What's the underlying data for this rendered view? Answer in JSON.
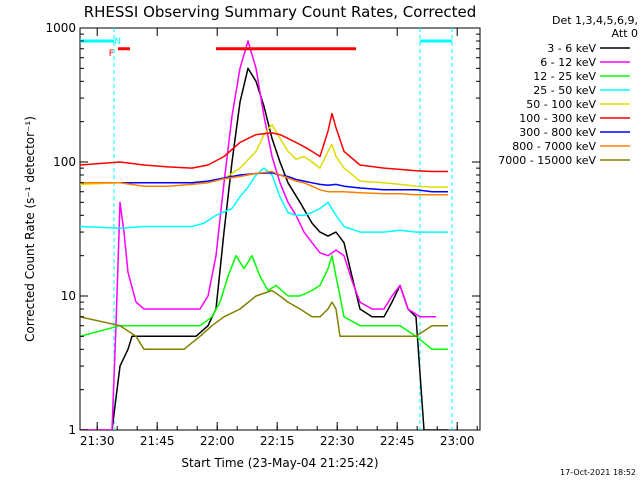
{
  "chart_data": {
    "type": "line",
    "title": "RHESSI Observing Summary Count Rates, Corrected",
    "xlabel": "Start Time (23-May-04 21:25:42)",
    "ylabel": "Corrected Count Rate (s⁻¹ detector⁻¹)",
    "y_scale": "log",
    "ylim": [
      1,
      1000
    ],
    "xlim_min_after_2125": [
      0,
      100
    ],
    "x_ticks": [
      {
        "label": "21:30",
        "t": 4.3
      },
      {
        "label": "21:45",
        "t": 19.3
      },
      {
        "label": "22:00",
        "t": 34.3
      },
      {
        "label": "22:15",
        "t": 49.3
      },
      {
        "label": "22:30",
        "t": 64.3
      },
      {
        "label": "22:45",
        "t": 79.3
      },
      {
        "label": "23:00",
        "t": 94.3
      }
    ],
    "y_ticks": [
      {
        "label": "1",
        "v": 1
      },
      {
        "label": "10",
        "v": 10
      },
      {
        "label": "100",
        "v": 100
      },
      {
        "label": "1000",
        "v": 1000
      }
    ],
    "legend_header": [
      "Det 1,3,4,5,6,9,",
      "Att 0"
    ],
    "legend_placement": "right",
    "annotations": {
      "night_label": "N",
      "flare_label": "F"
    },
    "x_unit": "minutes after 21:25:42",
    "series": [
      {
        "name": "3 - 6 keV",
        "color": "#000000",
        "points": [
          [
            0,
            1
          ],
          [
            8,
            1
          ],
          [
            10,
            3
          ],
          [
            12,
            4
          ],
          [
            13,
            5
          ],
          [
            17,
            5
          ],
          [
            20,
            5
          ],
          [
            26,
            5
          ],
          [
            29,
            5
          ],
          [
            32,
            6
          ],
          [
            34,
            8
          ],
          [
            36,
            30
          ],
          [
            38,
            100
          ],
          [
            40,
            280
          ],
          [
            42,
            500
          ],
          [
            44,
            400
          ],
          [
            46,
            260
          ],
          [
            48,
            150
          ],
          [
            50,
            100
          ],
          [
            52,
            70
          ],
          [
            55,
            50
          ],
          [
            58,
            35
          ],
          [
            60,
            30
          ],
          [
            62,
            28
          ],
          [
            64,
            30
          ],
          [
            66,
            25
          ],
          [
            68,
            14
          ],
          [
            70,
            8
          ],
          [
            73,
            7
          ],
          [
            76,
            7
          ],
          [
            78,
            9
          ],
          [
            80,
            12
          ],
          [
            82,
            8
          ],
          [
            84,
            7
          ],
          [
            86,
            1
          ],
          [
            92,
            1
          ]
        ]
      },
      {
        "name": "6 - 12 keV",
        "color": "#ff00ff",
        "points": [
          [
            0,
            1
          ],
          [
            8,
            1
          ],
          [
            9,
            6
          ],
          [
            10,
            50
          ],
          [
            11,
            30
          ],
          [
            12,
            15
          ],
          [
            14,
            9
          ],
          [
            16,
            8
          ],
          [
            20,
            8
          ],
          [
            26,
            8
          ],
          [
            30,
            8
          ],
          [
            32,
            10
          ],
          [
            34,
            20
          ],
          [
            36,
            70
          ],
          [
            38,
            220
          ],
          [
            40,
            500
          ],
          [
            42,
            800
          ],
          [
            44,
            500
          ],
          [
            46,
            220
          ],
          [
            48,
            110
          ],
          [
            50,
            70
          ],
          [
            52,
            50
          ],
          [
            54,
            40
          ],
          [
            56,
            30
          ],
          [
            58,
            25
          ],
          [
            60,
            21
          ],
          [
            62,
            20
          ],
          [
            64,
            22
          ],
          [
            66,
            20
          ],
          [
            68,
            13
          ],
          [
            70,
            9
          ],
          [
            73,
            8
          ],
          [
            76,
            8
          ],
          [
            78,
            10
          ],
          [
            80,
            12
          ],
          [
            82,
            8
          ],
          [
            85,
            7
          ],
          [
            89,
            7
          ]
        ]
      },
      {
        "name": "12 - 25 keV",
        "color": "#00ff00",
        "points": [
          [
            0,
            5
          ],
          [
            10,
            6
          ],
          [
            16,
            6
          ],
          [
            22,
            6
          ],
          [
            26,
            6
          ],
          [
            30,
            6
          ],
          [
            33,
            7
          ],
          [
            35,
            9
          ],
          [
            37,
            14
          ],
          [
            39,
            20
          ],
          [
            41,
            16
          ],
          [
            43,
            20
          ],
          [
            45,
            14
          ],
          [
            47,
            11
          ],
          [
            49,
            12
          ],
          [
            52,
            10
          ],
          [
            55,
            10
          ],
          [
            58,
            11
          ],
          [
            60,
            12
          ],
          [
            62,
            16
          ],
          [
            63,
            20
          ],
          [
            64,
            14
          ],
          [
            65,
            10
          ],
          [
            66,
            7
          ],
          [
            70,
            6
          ],
          [
            76,
            6
          ],
          [
            80,
            6
          ],
          [
            84,
            5
          ],
          [
            88,
            4
          ],
          [
            92,
            4
          ]
        ]
      },
      {
        "name": "25 - 50 keV",
        "color": "#00ffff",
        "points": [
          [
            0,
            33
          ],
          [
            10,
            32
          ],
          [
            16,
            33
          ],
          [
            22,
            33
          ],
          [
            28,
            33
          ],
          [
            31,
            35
          ],
          [
            34,
            40
          ],
          [
            38,
            45
          ],
          [
            40,
            55
          ],
          [
            42,
            65
          ],
          [
            44,
            80
          ],
          [
            46,
            90
          ],
          [
            48,
            80
          ],
          [
            50,
            55
          ],
          [
            52,
            42
          ],
          [
            54,
            40
          ],
          [
            56,
            40
          ],
          [
            58,
            42
          ],
          [
            60,
            45
          ],
          [
            62,
            50
          ],
          [
            64,
            40
          ],
          [
            66,
            33
          ],
          [
            70,
            30
          ],
          [
            76,
            30
          ],
          [
            80,
            31
          ],
          [
            84,
            30
          ],
          [
            88,
            30
          ],
          [
            92,
            30
          ]
        ]
      },
      {
        "name": "50 - 100 keV",
        "color": "#dddd00",
        "points": [
          [
            0,
            68
          ],
          [
            10,
            70
          ],
          [
            16,
            70
          ],
          [
            22,
            70
          ],
          [
            28,
            70
          ],
          [
            32,
            72
          ],
          [
            36,
            75
          ],
          [
            40,
            90
          ],
          [
            44,
            120
          ],
          [
            46,
            160
          ],
          [
            48,
            190
          ],
          [
            50,
            150
          ],
          [
            52,
            120
          ],
          [
            54,
            105
          ],
          [
            56,
            110
          ],
          [
            58,
            100
          ],
          [
            60,
            90
          ],
          [
            62,
            120
          ],
          [
            63,
            135
          ],
          [
            64,
            110
          ],
          [
            66,
            90
          ],
          [
            70,
            72
          ],
          [
            76,
            70
          ],
          [
            80,
            68
          ],
          [
            84,
            66
          ],
          [
            88,
            65
          ],
          [
            92,
            65
          ]
        ]
      },
      {
        "name": "100 - 300 keV",
        "color": "#ff0000",
        "points": [
          [
            0,
            95
          ],
          [
            10,
            100
          ],
          [
            16,
            95
          ],
          [
            22,
            92
          ],
          [
            28,
            90
          ],
          [
            32,
            95
          ],
          [
            36,
            110
          ],
          [
            40,
            140
          ],
          [
            44,
            160
          ],
          [
            48,
            165
          ],
          [
            50,
            160
          ],
          [
            52,
            150
          ],
          [
            54,
            140
          ],
          [
            56,
            130
          ],
          [
            58,
            120
          ],
          [
            60,
            110
          ],
          [
            62,
            170
          ],
          [
            63,
            230
          ],
          [
            64,
            180
          ],
          [
            66,
            120
          ],
          [
            70,
            95
          ],
          [
            76,
            90
          ],
          [
            80,
            88
          ],
          [
            84,
            86
          ],
          [
            88,
            85
          ],
          [
            92,
            85
          ]
        ]
      },
      {
        "name": "300 - 800 keV",
        "color": "#0000ff",
        "points": [
          [
            0,
            70
          ],
          [
            10,
            70
          ],
          [
            16,
            70
          ],
          [
            22,
            70
          ],
          [
            28,
            70
          ],
          [
            32,
            72
          ],
          [
            36,
            76
          ],
          [
            40,
            80
          ],
          [
            44,
            82
          ],
          [
            48,
            83
          ],
          [
            50,
            80
          ],
          [
            52,
            78
          ],
          [
            54,
            74
          ],
          [
            56,
            72
          ],
          [
            58,
            70
          ],
          [
            60,
            68
          ],
          [
            62,
            67
          ],
          [
            64,
            68
          ],
          [
            66,
            66
          ],
          [
            70,
            64
          ],
          [
            76,
            62
          ],
          [
            80,
            62
          ],
          [
            84,
            62
          ],
          [
            88,
            60
          ],
          [
            92,
            60
          ]
        ]
      },
      {
        "name": "800 - 7000 keV",
        "color": "#ff8000",
        "points": [
          [
            0,
            70
          ],
          [
            10,
            70
          ],
          [
            16,
            66
          ],
          [
            22,
            66
          ],
          [
            28,
            68
          ],
          [
            32,
            70
          ],
          [
            36,
            75
          ],
          [
            40,
            78
          ],
          [
            44,
            82
          ],
          [
            48,
            85
          ],
          [
            50,
            80
          ],
          [
            52,
            76
          ],
          [
            54,
            72
          ],
          [
            56,
            70
          ],
          [
            58,
            66
          ],
          [
            60,
            62
          ],
          [
            62,
            60
          ],
          [
            64,
            60
          ],
          [
            66,
            60
          ],
          [
            70,
            59
          ],
          [
            76,
            58
          ],
          [
            80,
            58
          ],
          [
            84,
            57
          ],
          [
            88,
            57
          ],
          [
            92,
            57
          ]
        ]
      },
      {
        "name": "7000 - 15000 keV",
        "color": "#808000",
        "points": [
          [
            0,
            7
          ],
          [
            10,
            6
          ],
          [
            14,
            5
          ],
          [
            16,
            4
          ],
          [
            20,
            4
          ],
          [
            26,
            4
          ],
          [
            30,
            5
          ],
          [
            33,
            6
          ],
          [
            36,
            7
          ],
          [
            40,
            8
          ],
          [
            44,
            10
          ],
          [
            48,
            11
          ],
          [
            50,
            10
          ],
          [
            52,
            9
          ],
          [
            55,
            8
          ],
          [
            58,
            7
          ],
          [
            60,
            7
          ],
          [
            62,
            8
          ],
          [
            63,
            9
          ],
          [
            64,
            8
          ],
          [
            65,
            5
          ],
          [
            68,
            5
          ],
          [
            72,
            5
          ],
          [
            76,
            5
          ],
          [
            80,
            5
          ],
          [
            84,
            5
          ],
          [
            88,
            6
          ],
          [
            92,
            6
          ]
        ]
      }
    ],
    "bars": [
      {
        "id": "night",
        "color": "#00ffff",
        "segments": [
          [
            0,
            8.5
          ],
          [
            85,
            93
          ]
        ],
        "level": 800
      },
      {
        "id": "flare",
        "color": "#ff0000",
        "segments": [
          [
            9.5,
            12.5
          ],
          [
            34,
            69
          ]
        ],
        "level": 700
      }
    ],
    "vlines": [
      {
        "t": 8.5,
        "color": "#00ffff"
      },
      {
        "t": 85,
        "color": "#00ffff"
      },
      {
        "t": 93,
        "color": "#00ffff"
      }
    ],
    "footer_stamp": "17-Oct-2021 18:52"
  }
}
